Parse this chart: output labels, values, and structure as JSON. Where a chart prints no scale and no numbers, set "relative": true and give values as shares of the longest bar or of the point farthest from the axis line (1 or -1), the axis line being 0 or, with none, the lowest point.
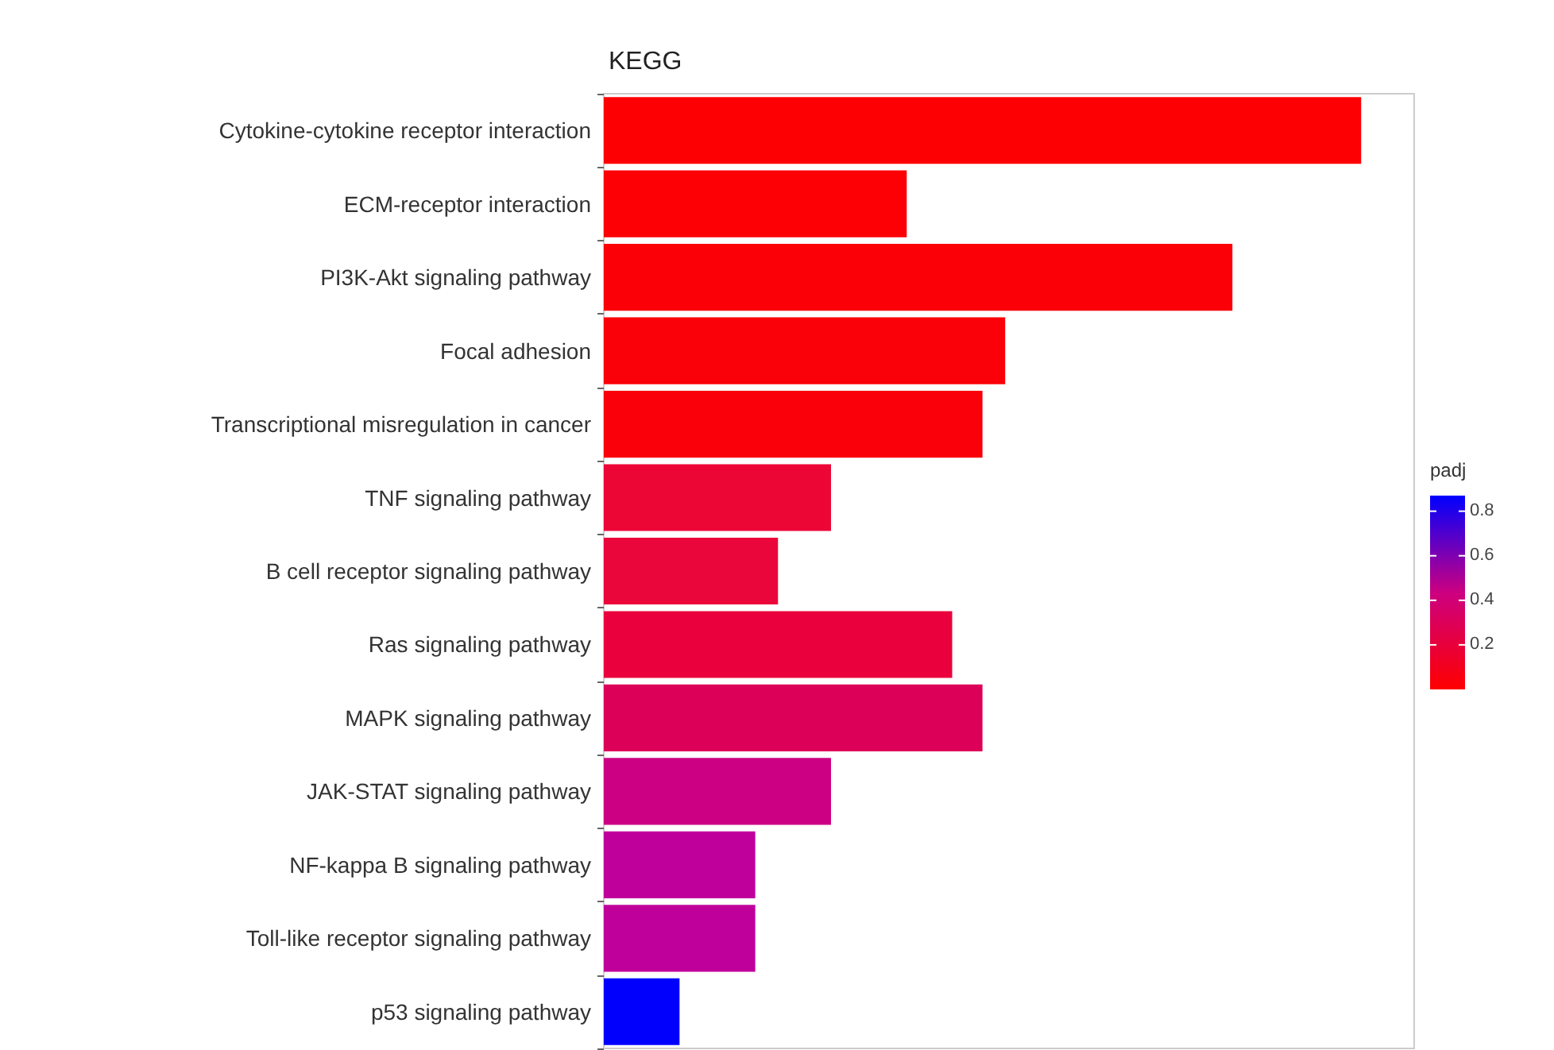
{
  "chart_data": {
    "type": "bar",
    "orientation": "horizontal",
    "relative": true,
    "title": "KEGG",
    "clabel": "padj",
    "categories": [
      "Cytokine-cytokine receptor interaction",
      "ECM-receptor interaction",
      "PI3K-Akt signaling pathway",
      "Focal adhesion",
      "Transcriptional misregulation in cancer",
      "TNF signaling pathway",
      "B cell receptor signaling pathway",
      "Ras signaling pathway",
      "MAPK signaling pathway",
      "JAK-STAT signaling pathway",
      "NF-kappa B signaling pathway",
      "Toll-like receptor signaling pathway",
      "p53 signaling pathway"
    ],
    "values": [
      1,
      0.4,
      0.83,
      0.53,
      0.5,
      0.3,
      0.23,
      0.46,
      0.5,
      0.3,
      0.2,
      0.2,
      0.1
    ],
    "colors": [
      "#fc0004",
      "#fc0006",
      "#fb0006",
      "#fa0008",
      "#f9000a",
      "#ec0636",
      "#ea063a",
      "#ea003c",
      "#dc0058",
      "#cc0082",
      "#c0009a",
      "#c0009a",
      "#0000fc"
    ],
    "clim": [
      0,
      0.87
    ],
    "cticks": [
      0.2,
      0.4,
      0.6,
      0.8
    ]
  }
}
